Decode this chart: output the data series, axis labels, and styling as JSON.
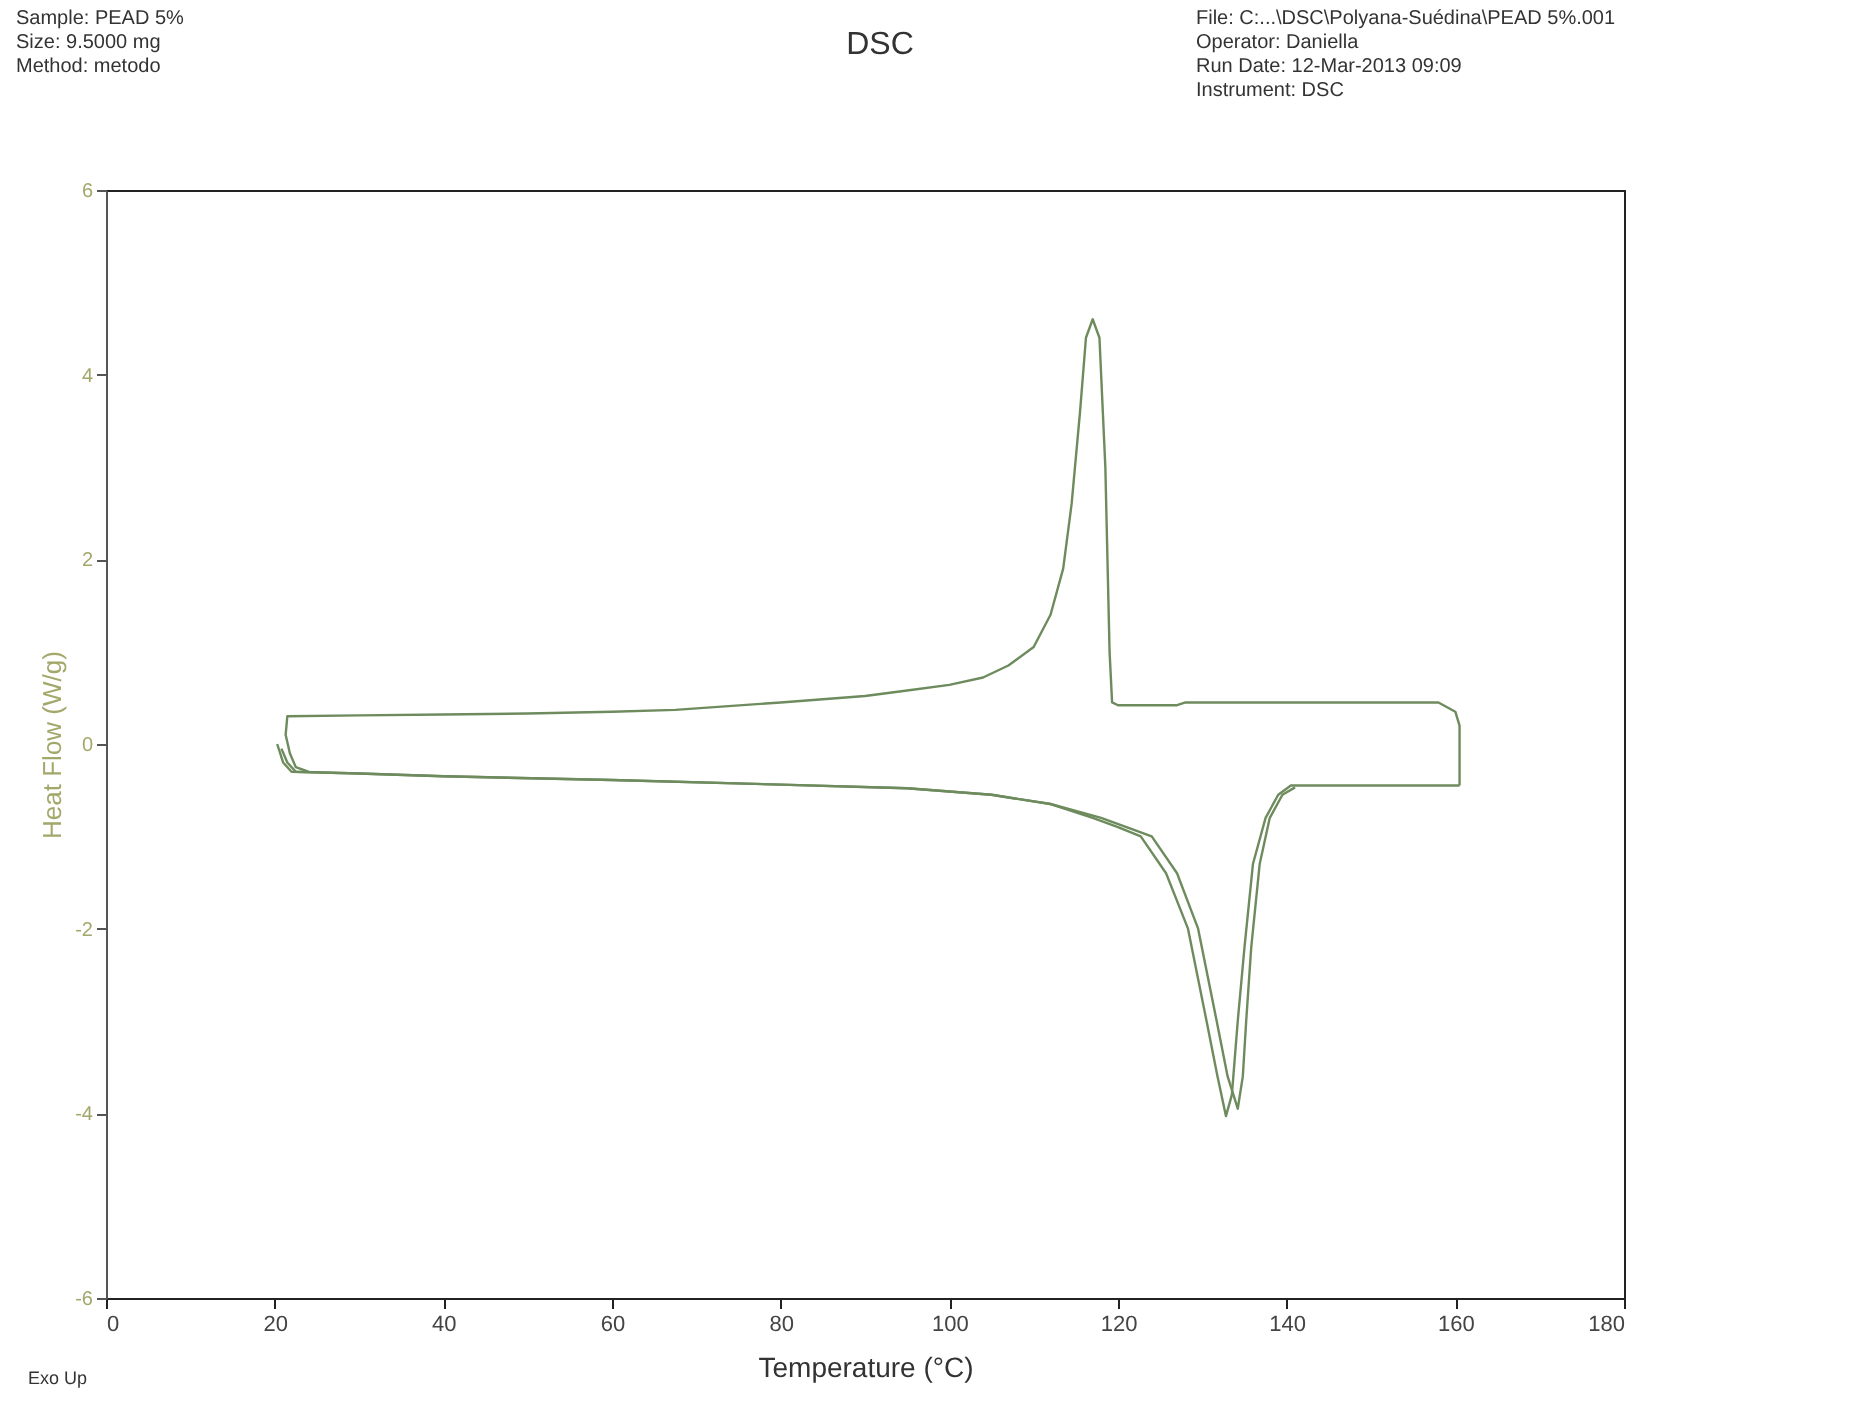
{
  "chart_data": {
    "type": "line",
    "title": "DSC",
    "xlabel": "Temperature (°C)",
    "ylabel": "Heat Flow (W/g)",
    "annotations": [
      "Sample: PEAD 5%",
      "Size: 9.5000 mg",
      "Method: metodo",
      "File: C:...\\DSC\\Polyana-Suédina\\PEAD 5%.001",
      "Operator: Daniella",
      "Run Date: 12-Mar-2013 09:09",
      "Instrument: DSC",
      "Exo Up"
    ],
    "xlim": [
      0,
      180
    ],
    "xticks": [
      0,
      20,
      40,
      60,
      80,
      100,
      120,
      140,
      160,
      180
    ],
    "ylim": [
      -6,
      6
    ],
    "yticks": [
      -6,
      -4,
      -2,
      0,
      2,
      4,
      6
    ],
    "grid": false,
    "line_style": "solid",
    "series": [
      {
        "color": "#6e8b5e",
        "x": [
          160.5,
          160.5,
          160,
          158,
          140,
          128,
          127,
          120,
          119.3,
          119,
          118.5,
          117.8,
          117,
          116.2,
          115.5,
          114.5,
          113.5,
          112,
          110,
          107,
          104,
          100,
          95,
          90,
          80,
          67.5,
          60,
          50,
          40,
          30,
          21.5,
          21.3,
          21.8,
          22.5,
          24
        ],
        "values": [
          -0.45,
          0.2,
          0.35,
          0.45,
          0.45,
          0.45,
          0.42,
          0.42,
          0.45,
          1.0,
          3.0,
          4.4,
          4.6,
          4.4,
          3.6,
          2.6,
          1.9,
          1.4,
          1.05,
          0.85,
          0.72,
          0.64,
          0.58,
          0.52,
          0.45,
          0.37,
          0.35,
          0.33,
          0.32,
          0.31,
          0.3,
          0.1,
          -0.1,
          -0.25,
          -0.3
        ]
      },
      {
        "color": "#6e8b5e",
        "x": [
          20.8,
          21.5,
          22.5,
          30,
          40,
          60,
          80,
          95,
          105,
          112,
          117,
          120,
          122.7,
          125.7,
          128.3,
          130.5,
          131.8,
          132.8,
          133.5,
          134.2,
          135,
          136,
          137.5,
          139,
          140.5,
          160.5
        ],
        "values": [
          -0.05,
          -0.2,
          -0.3,
          -0.32,
          -0.35,
          -0.39,
          -0.44,
          -0.48,
          -0.55,
          -0.65,
          -0.8,
          -0.9,
          -1.0,
          -1.4,
          -2.0,
          -3.0,
          -3.6,
          -4.03,
          -3.8,
          -3.0,
          -2.2,
          -1.3,
          -0.8,
          -0.55,
          -0.45,
          -0.45
        ]
      },
      {
        "color": "#6e8b5e",
        "x": [
          20.3,
          21,
          22,
          30,
          40,
          60,
          80,
          95,
          105,
          112,
          118,
          121,
          124,
          127,
          129.5,
          131.7,
          133,
          134.2,
          134.8,
          135.2,
          135.8,
          136.8,
          138,
          139.5,
          141
        ],
        "values": [
          0.0,
          -0.2,
          -0.3,
          -0.32,
          -0.35,
          -0.39,
          -0.44,
          -0.48,
          -0.55,
          -0.65,
          -0.8,
          -0.9,
          -1.0,
          -1.4,
          -2.0,
          -3.0,
          -3.6,
          -3.95,
          -3.6,
          -3.0,
          -2.2,
          -1.3,
          -0.8,
          -0.55,
          -0.47
        ]
      }
    ]
  }
}
